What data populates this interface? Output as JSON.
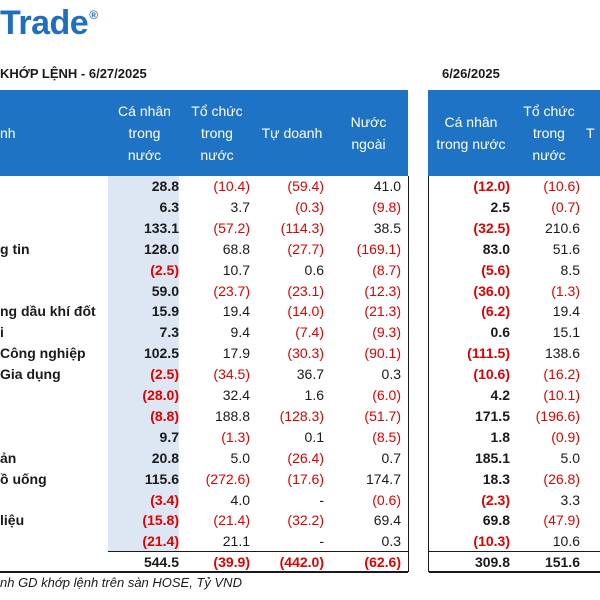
{
  "brand": {
    "text": "Trade",
    "mark": "®"
  },
  "titles": {
    "left": "KHỚP LỆNH - 6/27/2025",
    "right": "6/26/2025"
  },
  "headers": {
    "left": [
      "nh",
      "Cá nhân\ntrong\nnước",
      "Tổ chức\ntrong\nnước",
      "Tự doanh",
      "Nước\nngoài"
    ],
    "right": [
      "Cá nhân\ntrong nước",
      "Tổ chức\ntrong\nnước",
      "T"
    ]
  },
  "rows": [
    {
      "label": "",
      "v": [
        "28.8",
        "(10.4)",
        "(59.4)",
        "41.0"
      ],
      "r": [
        "(12.0)",
        "(10.6)"
      ]
    },
    {
      "label": "",
      "v": [
        "6.3",
        "3.7",
        "(0.3)",
        "(9.8)"
      ],
      "r": [
        "2.5",
        "(0.7)"
      ]
    },
    {
      "label": "",
      "v": [
        "133.1",
        "(57.2)",
        "(114.3)",
        "38.5"
      ],
      "r": [
        "(32.5)",
        "210.6"
      ]
    },
    {
      "label": "g tin",
      "v": [
        "128.0",
        "68.8",
        "(27.7)",
        "(169.1)"
      ],
      "r": [
        "83.0",
        "51.6"
      ]
    },
    {
      "label": "",
      "v": [
        "(2.5)",
        "10.7",
        "0.6",
        "(8.7)"
      ],
      "r": [
        "(5.6)",
        "8.5"
      ]
    },
    {
      "label": "",
      "v": [
        "59.0",
        "(23.7)",
        "(23.1)",
        "(12.3)"
      ],
      "r": [
        "(36.0)",
        "(1.3)"
      ]
    },
    {
      "label": "ng dầu khí đốt",
      "v": [
        "15.9",
        "19.4",
        "(14.0)",
        "(21.3)"
      ],
      "r": [
        "(6.2)",
        "19.4"
      ]
    },
    {
      "label": "i",
      "v": [
        "7.3",
        "9.4",
        "(7.4)",
        "(9.3)"
      ],
      "r": [
        "0.6",
        "15.1"
      ]
    },
    {
      "label": "Công nghiệp",
      "v": [
        "102.5",
        "17.9",
        "(30.3)",
        "(90.1)"
      ],
      "r": [
        "(111.5)",
        "138.6"
      ]
    },
    {
      "label": "Gia dụng",
      "v": [
        "(2.5)",
        "(34.5)",
        "36.7",
        "0.3"
      ],
      "r": [
        "(10.6)",
        "(16.2)"
      ]
    },
    {
      "label": "",
      "v": [
        "(28.0)",
        "32.4",
        "1.6",
        "(6.0)"
      ],
      "r": [
        "4.2",
        "(10.1)"
      ]
    },
    {
      "label": "",
      "v": [
        "(8.8)",
        "188.8",
        "(128.3)",
        "(51.7)"
      ],
      "r": [
        "171.5",
        "(196.6)"
      ]
    },
    {
      "label": "",
      "v": [
        "9.7",
        "(1.3)",
        "0.1",
        "(8.5)"
      ],
      "r": [
        "1.8",
        "(0.9)"
      ]
    },
    {
      "label": "ản",
      "v": [
        "20.8",
        "5.0",
        "(26.4)",
        "0.7"
      ],
      "r": [
        "185.1",
        "5.0"
      ]
    },
    {
      "label": "ồ uống",
      "v": [
        "115.6",
        "(272.6)",
        "(17.6)",
        "174.7"
      ],
      "r": [
        "18.3",
        "(26.8)"
      ]
    },
    {
      "label": "",
      "v": [
        "(3.4)",
        "4.0",
        "-",
        "(0.6)"
      ],
      "r": [
        "(2.3)",
        "3.3"
      ]
    },
    {
      "label": "liệu",
      "v": [
        "(15.8)",
        "(21.4)",
        "(32.2)",
        "69.4"
      ],
      "r": [
        "69.8",
        "(47.9)"
      ]
    },
    {
      "label": "",
      "v": [
        "(21.4)",
        "21.1",
        "-",
        "0.3"
      ],
      "r": [
        "(10.3)",
        "10.6"
      ]
    }
  ],
  "total": {
    "v": [
      "544.5",
      "(39.9)",
      "(442.0)",
      "(62.6)"
    ],
    "r": [
      "309.8",
      "151.6"
    ]
  },
  "footnote": "nh GD khớp lệnh trên sàn HOSE, Tỷ VND",
  "colors": {
    "header_bg": "#1f73c4",
    "brand": "#1f6fc1",
    "negative": "#e00000",
    "highlight_col": "#dde6f3"
  }
}
